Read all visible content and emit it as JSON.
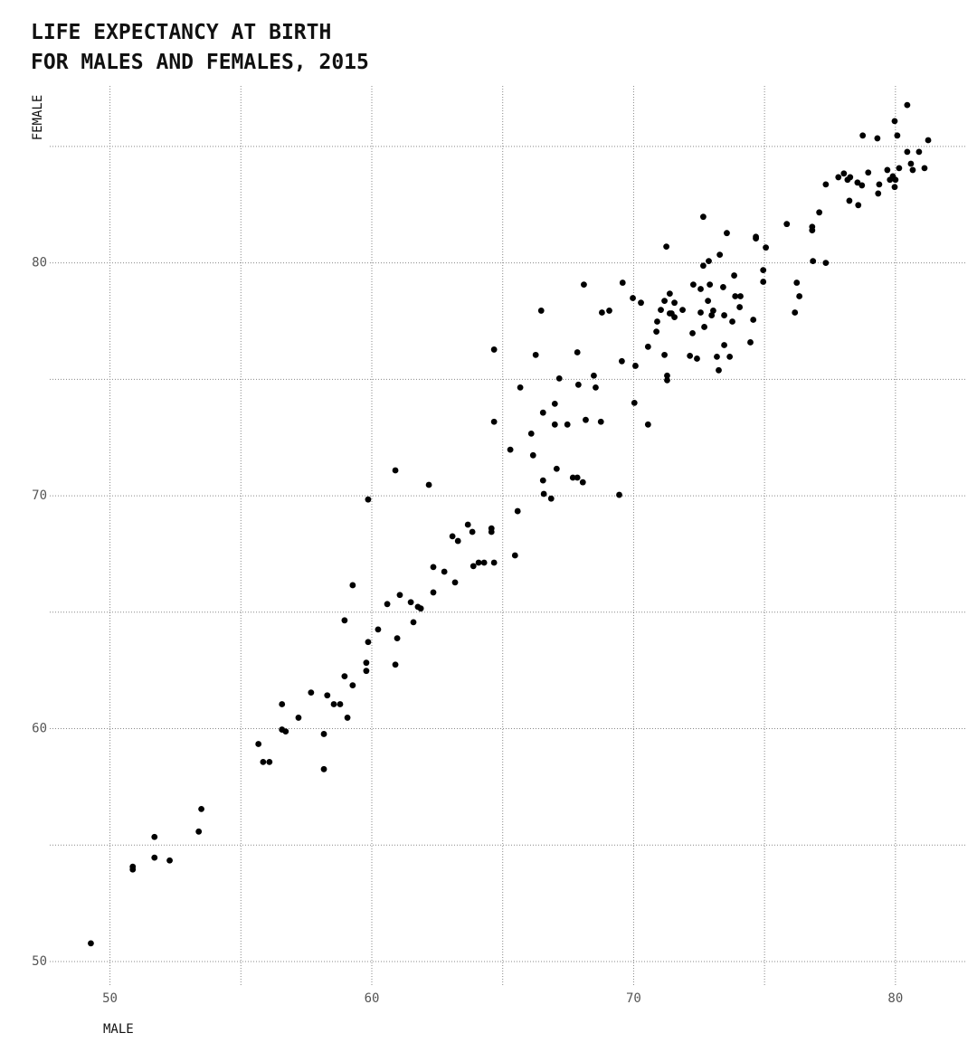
{
  "chart_data": {
    "type": "scatter",
    "title": "LIFE EXPECTANCY AT BIRTH\nFOR MALES AND FEMALES, 2015",
    "x_label": "MALE",
    "y_label": "FEMALE",
    "color": "#000000",
    "grid": true,
    "xlim": [
      47.7,
      82.7
    ],
    "ylim": [
      48.95,
      87.6
    ],
    "xticks": [
      50,
      60,
      70,
      80
    ],
    "yticks": [
      50,
      60,
      70,
      80
    ],
    "xticks_minor": [
      55,
      65,
      75
    ],
    "yticks_minor": [
      55,
      65,
      75,
      85
    ],
    "x": [
      49.27,
      50.87,
      50.87,
      51.7,
      51.7,
      52.28,
      53.39,
      53.49,
      55.67,
      55.85,
      56.09,
      56.57,
      56.57,
      56.71,
      57.2,
      57.68,
      58.17,
      58.17,
      58.3,
      58.55,
      58.79,
      58.96,
      58.96,
      59.07,
      59.27,
      59.27,
      59.79,
      59.79,
      59.86,
      59.86,
      60.24,
      60.59,
      60.9,
      60.9,
      60.97,
      61.07,
      61.49,
      61.59,
      61.76,
      61.87,
      62.18,
      62.35,
      62.35,
      62.77,
      63.08,
      63.18,
      63.29,
      63.67,
      63.84,
      63.88,
      64.08,
      64.29,
      64.57,
      64.57,
      64.67,
      64.67,
      64.67,
      65.29,
      65.47,
      65.57,
      65.67,
      66.09,
      66.16,
      66.26,
      66.47,
      66.54,
      66.54,
      66.57,
      66.85,
      66.99,
      66.99,
      67.06,
      67.16,
      67.47,
      67.68,
      67.85,
      67.85,
      67.89,
      68.06,
      68.1,
      68.17,
      68.48,
      68.55,
      68.75,
      68.79,
      69.07,
      69.45,
      69.55,
      69.58,
      69.97,
      70.03,
      70.07,
      70.28,
      70.55,
      70.55,
      70.87,
      70.9,
      71.04,
      71.18,
      71.18,
      71.25,
      71.28,
      71.28,
      71.38,
      71.38,
      71.45,
      71.56,
      71.56,
      71.87,
      72.15,
      72.25,
      72.28,
      72.42,
      72.56,
      72.56,
      72.66,
      72.66,
      72.7,
      72.84,
      72.87,
      72.91,
      72.98,
      73.04,
      73.18,
      73.25,
      73.29,
      73.42,
      73.46,
      73.46,
      73.56,
      73.67,
      73.77,
      73.84,
      73.88,
      74.05,
      74.08,
      74.46,
      74.57,
      74.67,
      74.67,
      74.95,
      74.95,
      75.05,
      75.85,
      76.16,
      76.23,
      76.33,
      76.82,
      76.82,
      76.85,
      77.09,
      77.34,
      77.34,
      77.82,
      78.03,
      78.17,
      78.24,
      78.27,
      78.55,
      78.58,
      78.72,
      78.75,
      78.96,
      79.31,
      79.34,
      79.38,
      79.69,
      79.79,
      79.9,
      79.97,
      79.97,
      80.0,
      80.07,
      80.14,
      80.45,
      80.45,
      80.59,
      80.66,
      80.9,
      81.11,
      81.25
    ],
    "values": [
      50.78,
      54.07,
      53.95,
      55.35,
      54.46,
      54.34,
      55.58,
      56.55,
      59.34,
      58.57,
      58.57,
      61.05,
      59.96,
      59.88,
      60.47,
      61.55,
      59.77,
      58.26,
      61.43,
      61.05,
      61.05,
      64.65,
      62.25,
      60.47,
      66.16,
      61.86,
      62.83,
      62.48,
      63.72,
      69.84,
      64.26,
      65.35,
      71.09,
      62.75,
      63.88,
      65.74,
      65.43,
      64.57,
      65.23,
      65.16,
      70.47,
      66.94,
      65.85,
      66.74,
      68.26,
      66.28,
      68.06,
      68.76,
      68.45,
      66.98,
      67.13,
      67.13,
      68.6,
      68.45,
      67.13,
      76.28,
      73.18,
      71.98,
      67.44,
      69.34,
      74.65,
      72.67,
      71.74,
      76.05,
      77.95,
      70.66,
      73.57,
      70.08,
      69.88,
      73.95,
      73.06,
      71.16,
      75.04,
      73.06,
      70.78,
      70.78,
      76.16,
      74.77,
      70.58,
      79.07,
      73.26,
      75.16,
      74.65,
      73.18,
      77.87,
      77.95,
      70.04,
      75.78,
      79.15,
      78.49,
      73.99,
      75.58,
      78.29,
      73.06,
      76.4,
      77.05,
      77.48,
      77.98,
      78.37,
      76.05,
      80.7,
      75.16,
      74.96,
      78.68,
      77.83,
      77.83,
      78.29,
      77.67,
      77.98,
      76.01,
      76.98,
      79.07,
      75.89,
      77.87,
      78.88,
      81.98,
      79.88,
      77.25,
      78.37,
      80.08,
      79.07,
      77.75,
      77.95,
      75.97,
      75.39,
      80.35,
      78.96,
      77.75,
      76.47,
      81.28,
      75.97,
      77.48,
      79.46,
      78.57,
      78.1,
      78.57,
      76.59,
      77.56,
      81.12,
      81.05,
      79.69,
      79.19,
      80.66,
      81.67,
      77.87,
      79.15,
      78.57,
      81.55,
      81.4,
      80.08,
      82.17,
      80.0,
      83.37,
      83.68,
      83.84,
      83.57,
      82.67,
      83.68,
      83.45,
      82.48,
      83.33,
      85.47,
      83.88,
      85.35,
      82.98,
      83.37,
      83.99,
      83.57,
      83.72,
      83.26,
      86.09,
      83.57,
      85.47,
      84.07,
      84.77,
      86.78,
      84.26,
      83.99,
      84.77,
      84.07,
      85.27
    ]
  }
}
